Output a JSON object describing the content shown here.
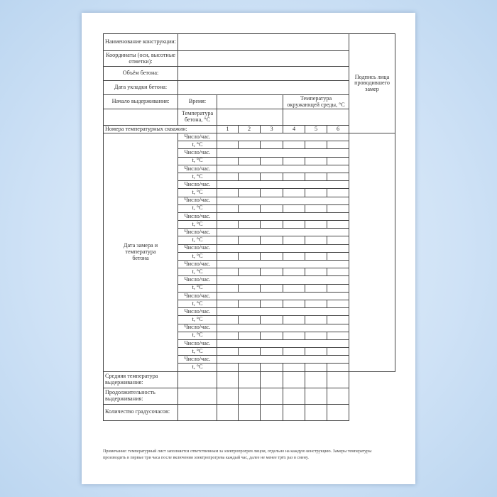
{
  "form": {
    "labels": {
      "construction_name": "Наименование конструкции:",
      "coordinates": "Координаты (оси, высотные отметки):",
      "concrete_volume": "Объём бетона:",
      "pour_date": "Дата укладки бетона:",
      "curing_start": "Начало выдерживания:",
      "time": "Время:",
      "ambient_temp": "Температура окружающей среды, °С",
      "concrete_temp": "Температура бетона, °С",
      "well_numbers": "Номера температурных скважин:",
      "signature": "Подпись лица проводившего замер",
      "measure_date": "Дата замера и температура бетона",
      "date_hour": "Число/час.",
      "t_c": "t, °С",
      "avg_temp": "Средняя температура выдерживания:",
      "duration": "Продолжительность выдерживания:",
      "degree_hours": "Количество градусочасов:"
    },
    "wells": [
      "1",
      "2",
      "3",
      "4",
      "5",
      "6"
    ]
  },
  "note": "Примечание: температурный лист заполняется ответственным за электропрогрев лицом, отдельно на каждую конструкцию. Замеры температуры производить в первые три часа после включения электропрогрева каждый час, далее не менее трёх раз в смену."
}
